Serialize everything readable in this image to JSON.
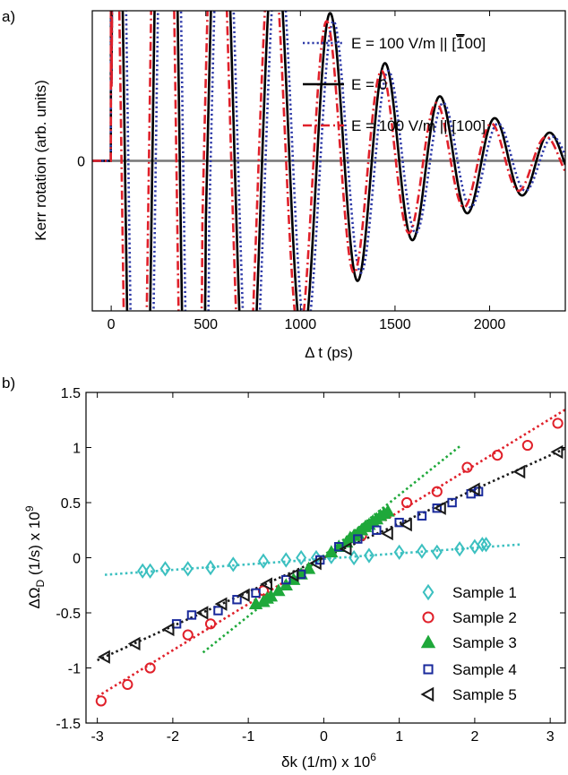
{
  "chart_data": [
    {
      "type": "line",
      "panel_label": "a)",
      "xlabel": "Δ t (ps)",
      "ylabel": "Kerr rotation (arb. units)",
      "xlim": [
        -100,
        2400
      ],
      "ylim": [
        -1.15,
        1.15
      ],
      "xticks": [
        0,
        500,
        1000,
        1500,
        2000
      ],
      "yticks": [
        0
      ],
      "yticklabels": [
        "0"
      ],
      "legend_position": "top-right",
      "series": [
        {
          "name": "E = 100 V/m || [̅0̅100]",
          "label_prefix": "E = 100 V/m || [",
          "label_bar": "1",
          "label_suffix": "00]",
          "color": "#2e3aa8",
          "dash": "dotted",
          "delay": 18,
          "damping": 660
        },
        {
          "name": "E = 0",
          "color": "#000000",
          "dash": "solid",
          "delay": 0,
          "damping": 700
        },
        {
          "name": "E = 100 V/m || [100]",
          "color": "#e0202a",
          "dash": "dashdot",
          "delay": -18,
          "damping": 660
        }
      ],
      "model": {
        "period": 290,
        "phase_peak": 580,
        "onset": 0,
        "amplitude": 2.9
      }
    },
    {
      "type": "scatter",
      "panel_label": "b)",
      "xlabel": "δk (1/m) x 10",
      "xlabel_exp": "6",
      "ylabel": "ΔΩ",
      "ylabel_sub": "D",
      "ylabel_tail": " (1/s)  x 10",
      "ylabel_exp": "9",
      "xlim": [
        -3.15,
        3.2
      ],
      "ylim": [
        -1.5,
        1.5
      ],
      "xticks": [
        -3,
        -2,
        -1,
        0,
        1,
        2,
        3
      ],
      "xticklabels": [
        "-3",
        "-2",
        "-1",
        "0",
        "1",
        "2",
        "3"
      ],
      "yticks": [
        -1.5,
        -1,
        -0.5,
        0,
        0.5,
        1,
        1.5
      ],
      "yticklabels": [
        "-1.5",
        "-1",
        "-0.5",
        "0",
        "0.5",
        "1",
        "1.5"
      ],
      "legend_position": "bottom-right",
      "series": [
        {
          "name": "Sample 1",
          "marker": "diamond",
          "color": "#3cc0c0",
          "fit": {
            "slope": 0.05,
            "intercept": -0.01,
            "x0": -2.9,
            "x1": 2.6
          },
          "x": [
            -2.4,
            -2.3,
            -2.1,
            -1.8,
            -1.5,
            -1.2,
            -0.8,
            -0.5,
            -0.3,
            -0.1,
            0.1,
            0.4,
            0.6,
            1.0,
            1.3,
            1.5,
            1.8,
            2.0,
            2.1,
            2.15
          ],
          "y": [
            -0.12,
            -0.12,
            -0.1,
            -0.1,
            -0.09,
            -0.06,
            -0.03,
            -0.02,
            0.0,
            0.0,
            0.01,
            0.0,
            0.02,
            0.05,
            0.06,
            0.05,
            0.08,
            0.1,
            0.12,
            0.12
          ]
        },
        {
          "name": "Sample 2",
          "marker": "circle",
          "color": "#e0202a",
          "fit": {
            "slope": 0.42,
            "intercept": 0.0,
            "x0": -3.0,
            "x1": 3.2
          },
          "x": [
            -2.95,
            -2.6,
            -2.3,
            -1.8,
            -1.5,
            -0.8,
            0.5,
            1.1,
            1.5,
            1.9,
            2.3,
            2.7,
            3.1
          ],
          "y": [
            -1.3,
            -1.15,
            -1.0,
            -0.7,
            -0.6,
            -0.3,
            0.2,
            0.5,
            0.6,
            0.82,
            0.93,
            1.02,
            1.22
          ],
          "fill": "none"
        },
        {
          "name": "Sample 3",
          "marker": "triangle-up",
          "color": "#1ea83a",
          "fit": {
            "slope": 0.55,
            "intercept": 0.02,
            "x0": -1.6,
            "x1": 1.8
          },
          "x": [
            -0.9,
            -0.8,
            -0.75,
            -0.7,
            -0.6,
            -0.5,
            -0.4,
            -0.3,
            -0.2,
            0.1,
            0.2,
            0.3,
            0.35,
            0.4,
            0.45,
            0.5,
            0.55,
            0.6,
            0.65,
            0.7,
            0.75,
            0.8,
            0.85
          ],
          "y": [
            -0.42,
            -0.4,
            -0.37,
            -0.35,
            -0.3,
            -0.25,
            -0.2,
            -0.15,
            -0.1,
            0.05,
            0.1,
            0.14,
            0.18,
            0.2,
            0.22,
            0.25,
            0.28,
            0.3,
            0.33,
            0.35,
            0.38,
            0.4,
            0.42
          ]
        },
        {
          "name": "Sample 4",
          "marker": "square",
          "color": "#1a2a9c",
          "fit": null,
          "x": [
            -1.95,
            -1.75,
            -1.4,
            -1.15,
            -0.9,
            -0.5,
            -0.3,
            -0.05,
            0.2,
            0.45,
            0.7,
            1.0,
            1.3,
            1.5,
            1.7,
            1.95,
            2.05
          ],
          "y": [
            -0.6,
            -0.52,
            -0.48,
            -0.38,
            -0.32,
            -0.2,
            -0.15,
            -0.02,
            0.1,
            0.17,
            0.25,
            0.32,
            0.38,
            0.45,
            0.5,
            0.58,
            0.6
          ],
          "fill": "none"
        },
        {
          "name": "Sample 5",
          "marker": "triangle-left",
          "color": "#1a1a1a",
          "fit": {
            "slope": 0.31,
            "intercept": 0.0,
            "x0": -3.0,
            "x1": 3.2
          },
          "x": [
            -2.9,
            -2.5,
            -2.05,
            -1.6,
            -1.35,
            -1.05,
            -0.75,
            -0.4,
            -0.1,
            0.3,
            0.85,
            1.1,
            1.55,
            2.0,
            2.6,
            3.1
          ],
          "y": [
            -0.9,
            -0.78,
            -0.65,
            -0.5,
            -0.42,
            -0.34,
            -0.24,
            -0.16,
            -0.05,
            0.08,
            0.22,
            0.3,
            0.45,
            0.62,
            0.78,
            0.96
          ],
          "fill": "none"
        }
      ]
    }
  ]
}
